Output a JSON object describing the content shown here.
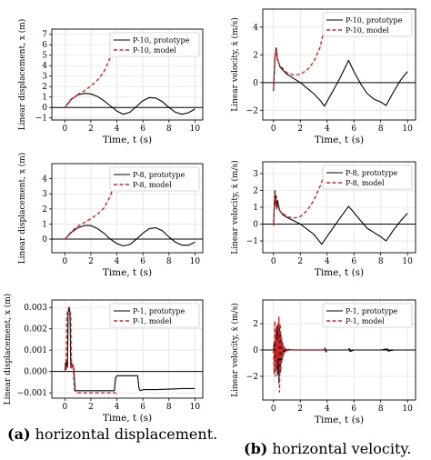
{
  "colors": {
    "prototype": "#000000",
    "model": "#d62728",
    "grid": "#e3e3e3",
    "zero_line": "#000000"
  },
  "captions": {
    "a": {
      "tag": "(a)",
      "text": "horizontal displacement."
    },
    "b": {
      "tag": "(b)",
      "text": "horizontal velocity."
    }
  },
  "chart_data": [
    {
      "type": "line",
      "column": "a",
      "row": 1,
      "xlabel": "Time, t (s)",
      "ylabel": "Linear displacement, x (m)",
      "xlim": [
        -1,
        10.6
      ],
      "ylim": [
        -1.2,
        7.5
      ],
      "xticks": [
        0,
        2,
        4,
        6,
        8,
        10
      ],
      "xtick_labels": [
        "0",
        "2",
        "4",
        "6",
        "8",
        "10"
      ],
      "yticks": [
        -1,
        0,
        1,
        2,
        3,
        4,
        5,
        6,
        7
      ],
      "ytick_labels": [
        "−1",
        "0",
        "1",
        "2",
        "3",
        "4",
        "5",
        "6",
        "7"
      ],
      "grid": true,
      "legend": "top-right",
      "series": [
        {
          "name": "P-10, prototype",
          "style": "solid",
          "x": [
            0,
            0.5,
            1,
            1.5,
            2,
            2.5,
            3,
            3.5,
            4,
            4.5,
            5,
            5.5,
            6,
            6.5,
            7,
            7.5,
            8,
            8.5,
            9,
            9.5,
            10
          ],
          "y": [
            0,
            0.8,
            1.2,
            1.35,
            1.3,
            1.05,
            0.65,
            0.15,
            -0.35,
            -0.65,
            -0.45,
            0.1,
            0.65,
            0.95,
            0.9,
            0.55,
            0.0,
            -0.45,
            -0.65,
            -0.5,
            -0.15
          ]
        },
        {
          "name": "P-10, model",
          "style": "dashed",
          "x": [
            0,
            0.5,
            1,
            1.5,
            2,
            2.5,
            3,
            3.5,
            4
          ],
          "y": [
            0,
            0.75,
            1.25,
            1.6,
            2.05,
            2.6,
            3.4,
            4.8,
            6.6
          ]
        }
      ]
    },
    {
      "type": "line",
      "column": "b",
      "row": 1,
      "xlabel": "Time, t (s)",
      "ylabel": "Linear velocity, ẋ (m/s)",
      "xlim": [
        -0.8,
        10.6
      ],
      "ylim": [
        -2.7,
        5.3
      ],
      "xticks": [
        0,
        2,
        4,
        6,
        8,
        10
      ],
      "xtick_labels": [
        "0",
        "2",
        "4",
        "6",
        "8",
        "10"
      ],
      "yticks": [
        -2,
        0,
        2,
        4
      ],
      "ytick_labels": [
        "−2",
        "0",
        "2",
        "4"
      ],
      "grid": true,
      "legend": "top-right",
      "series": [
        {
          "name": "P-10, prototype",
          "style": "solid",
          "x": [
            0,
            0.1,
            0.2,
            0.3,
            0.5,
            0.7,
            1,
            1.5,
            2,
            2.5,
            3,
            3.5,
            3.8,
            4.5,
            5,
            5.6,
            6,
            6.5,
            7,
            7.5,
            8,
            8.4,
            9,
            9.5,
            10
          ],
          "y": [
            -0.6,
            1.8,
            2.5,
            1.7,
            1.1,
            0.9,
            0.6,
            0.3,
            0.0,
            -0.4,
            -0.8,
            -1.3,
            -1.7,
            -0.5,
            0.4,
            1.6,
            0.8,
            -0.1,
            -0.8,
            -1.2,
            -1.4,
            -1.65,
            -0.6,
            0.2,
            0.8
          ]
        },
        {
          "name": "P-10, model",
          "style": "dashed",
          "x": [
            0,
            0.1,
            0.2,
            0.3,
            0.5,
            1,
            1.5,
            2,
            2.5,
            3,
            3.5,
            4
          ],
          "y": [
            -0.5,
            1.8,
            2.4,
            1.6,
            1.2,
            0.7,
            0.55,
            0.6,
            0.9,
            1.5,
            2.6,
            5.0
          ]
        }
      ]
    },
    {
      "type": "line",
      "column": "a",
      "row": 2,
      "xlabel": "Time, t (s)",
      "ylabel": "Linear displacement, x (m)",
      "xlim": [
        -1,
        10.6
      ],
      "ylim": [
        -0.9,
        5.0
      ],
      "xticks": [
        0,
        2,
        4,
        6,
        8,
        10
      ],
      "xtick_labels": [
        "0",
        "2",
        "4",
        "6",
        "8",
        "10"
      ],
      "yticks": [
        0,
        1,
        2,
        3,
        4
      ],
      "ytick_labels": [
        "0",
        "1",
        "2",
        "3",
        "4"
      ],
      "grid": true,
      "legend": "top-right",
      "series": [
        {
          "name": "P-8, prototype",
          "style": "solid",
          "x": [
            0,
            0.5,
            1,
            1.5,
            2,
            2.5,
            3,
            3.5,
            4,
            4.5,
            5,
            5.5,
            6,
            6.5,
            7,
            7.5,
            8,
            8.5,
            9,
            9.5,
            10
          ],
          "y": [
            0,
            0.45,
            0.75,
            0.9,
            0.9,
            0.7,
            0.4,
            0.0,
            -0.3,
            -0.45,
            -0.35,
            0.0,
            0.4,
            0.7,
            0.75,
            0.55,
            0.15,
            -0.2,
            -0.4,
            -0.4,
            -0.2
          ]
        },
        {
          "name": "P-8, model",
          "style": "dashed",
          "x": [
            0,
            0.5,
            1,
            1.5,
            2,
            2.5,
            3,
            3.5,
            4
          ],
          "y": [
            0,
            0.5,
            0.85,
            1.1,
            1.35,
            1.65,
            2.05,
            2.85,
            4.4
          ]
        }
      ]
    },
    {
      "type": "line",
      "column": "b",
      "row": 2,
      "xlabel": "Time, t (s)",
      "ylabel": "Linear velocity, ẋ (m/s)",
      "xlim": [
        -0.8,
        10.6
      ],
      "ylim": [
        -1.7,
        3.7
      ],
      "xticks": [
        0,
        2,
        4,
        6,
        8,
        10
      ],
      "xtick_labels": [
        "0",
        "2",
        "4",
        "6",
        "8",
        "10"
      ],
      "yticks": [
        -1,
        0,
        1,
        2,
        3
      ],
      "ytick_labels": [
        "−1",
        "0",
        "1",
        "2",
        "3"
      ],
      "grid": true,
      "legend": "top-right",
      "series": [
        {
          "name": "P-8, prototype",
          "style": "solid",
          "x": [
            0,
            0.1,
            0.15,
            0.2,
            0.25,
            0.3,
            0.4,
            0.5,
            0.7,
            1,
            1.5,
            2,
            2.5,
            3,
            3.6,
            4.2,
            5,
            5.6,
            6,
            6.5,
            7,
            7.5,
            8,
            8.4,
            9,
            9.5,
            10
          ],
          "y": [
            -0.1,
            2.0,
            1.1,
            1.7,
            0.9,
            1.4,
            1.0,
            0.75,
            0.55,
            0.4,
            0.2,
            0.0,
            -0.3,
            -0.6,
            -1.2,
            -0.5,
            0.4,
            1.05,
            0.7,
            0.2,
            -0.25,
            -0.5,
            -0.75,
            -1.0,
            -0.3,
            0.2,
            0.65
          ]
        },
        {
          "name": "P-8, model",
          "style": "dashed",
          "x": [
            0,
            0.1,
            0.15,
            0.2,
            0.3,
            0.5,
            1,
            1.5,
            2,
            2.5,
            3,
            3.5,
            4
          ],
          "y": [
            -0.1,
            1.8,
            1.0,
            1.5,
            1.0,
            0.75,
            0.45,
            0.35,
            0.45,
            0.8,
            1.4,
            2.3,
            3.4
          ]
        }
      ]
    },
    {
      "type": "line",
      "column": "a",
      "row": 3,
      "xlabel": "Time, t (s)",
      "ylabel": "Linear displacement, x (m)",
      "xlim": [
        -1,
        10.6
      ],
      "ylim": [
        -0.00125,
        0.00335
      ],
      "xticks": [
        0,
        2,
        4,
        6,
        8,
        10
      ],
      "xtick_labels": [
        "0",
        "2",
        "4",
        "6",
        "8",
        "10"
      ],
      "yticks": [
        -0.001,
        0.0,
        0.001,
        0.002,
        0.003
      ],
      "ytick_labels": [
        "−0.001",
        "0.000",
        "0.001",
        "0.002",
        "0.003"
      ],
      "grid": true,
      "legend": "top-right",
      "series": [
        {
          "name": "P-1, prototype",
          "style": "solid",
          "x": [
            0,
            0.05,
            0.1,
            0.15,
            0.2,
            0.25,
            0.3,
            0.35,
            0.4,
            0.45,
            0.5,
            0.55,
            0.6,
            0.65,
            0.7,
            0.75,
            0.8,
            1,
            2,
            3,
            3.8,
            3.9,
            4,
            5,
            5.6,
            5.7,
            5.8,
            6,
            7,
            8,
            9,
            10
          ],
          "y": [
            0,
            0.0004,
            0.0001,
            0.0005,
            0.0002,
            0.0028,
            0.0029,
            0.003,
            0.0026,
            0.0002,
            0.0004,
            0.0002,
            0.0003,
            0.0002,
            0.0001,
            -0.0005,
            -0.0009,
            -0.0009,
            -0.0009,
            -0.0009,
            -0.0009,
            -0.0003,
            -0.0002,
            -0.0002,
            -0.0002,
            -0.0008,
            -0.0009,
            -0.00085,
            -0.00085,
            -0.00083,
            -0.0008,
            -0.0008
          ]
        },
        {
          "name": "P-1, model",
          "style": "dashed",
          "x": [
            0,
            0.05,
            0.1,
            0.15,
            0.2,
            0.25,
            0.3,
            0.35,
            0.4,
            0.45,
            0.5,
            0.55,
            0.6,
            0.65,
            0.7,
            0.75,
            1,
            2,
            3,
            4
          ],
          "y": [
            0,
            0.0003,
            0.0001,
            0.0026,
            0.0028,
            0.0029,
            0.003,
            0.0029,
            0.0028,
            0.0027,
            0.0001,
            0.0004,
            0.0002,
            0.0003,
            -0.0005,
            -0.0009,
            -0.001,
            -0.001,
            -0.001,
            -0.001
          ]
        }
      ]
    },
    {
      "type": "line",
      "column": "b",
      "row": 3,
      "xlabel": "Time, t (s)",
      "ylabel": "Linear velocity, ẋ (m/s)",
      "xlim": [
        -0.8,
        10.6
      ],
      "ylim": [
        -3.8,
        3.8
      ],
      "xticks": [
        0,
        2,
        4,
        6,
        8,
        10
      ],
      "xtick_labels": [
        "0",
        "2",
        "4",
        "6",
        "8",
        "10"
      ],
      "yticks": [
        -2,
        0,
        2
      ],
      "ytick_labels": [
        "−2",
        "0",
        "2"
      ],
      "grid": true,
      "legend": "top-right",
      "series": [
        {
          "name": "P-1, prototype",
          "style": "solid",
          "x": [
            0,
            0.05,
            0.1,
            0.15,
            0.2,
            0.25,
            0.3,
            0.35,
            0.4,
            0.45,
            0.5,
            0.55,
            0.6,
            0.65,
            0.7,
            0.75,
            0.8,
            0.9,
            1.0,
            1.2,
            1.5,
            2,
            3,
            3.8,
            3.85,
            3.9,
            4,
            5,
            5.6,
            5.65,
            5.7,
            6,
            7,
            8,
            8.5,
            8.55,
            9,
            10
          ],
          "y": [
            0,
            0.6,
            -0.9,
            1.2,
            -1.5,
            1.8,
            -1.9,
            2.0,
            -2.5,
            1.9,
            -1.7,
            1.2,
            -1.0,
            0.6,
            -0.5,
            0.3,
            -0.2,
            0.1,
            -0.05,
            0.05,
            0,
            0,
            0,
            0,
            0.15,
            -0.15,
            0,
            0,
            0,
            0.12,
            -0.12,
            0,
            0,
            0,
            0.08,
            -0.08,
            0,
            0
          ]
        },
        {
          "name": "P-1, model",
          "style": "dashed",
          "x": [
            0,
            0.05,
            0.1,
            0.15,
            0.2,
            0.25,
            0.3,
            0.35,
            0.4,
            0.45,
            0.5,
            0.55,
            0.6,
            0.65,
            0.7,
            0.75,
            0.8,
            0.9,
            1.0,
            1.5,
            4
          ],
          "y": [
            0,
            -1.8,
            2.2,
            -2.0,
            1.5,
            -1.2,
            0.8,
            -0.6,
            2.5,
            -3.2,
            2.0,
            -1.6,
            1.0,
            -0.8,
            0.5,
            -0.3,
            0.2,
            -0.1,
            0.05,
            0,
            0
          ]
        }
      ]
    }
  ]
}
